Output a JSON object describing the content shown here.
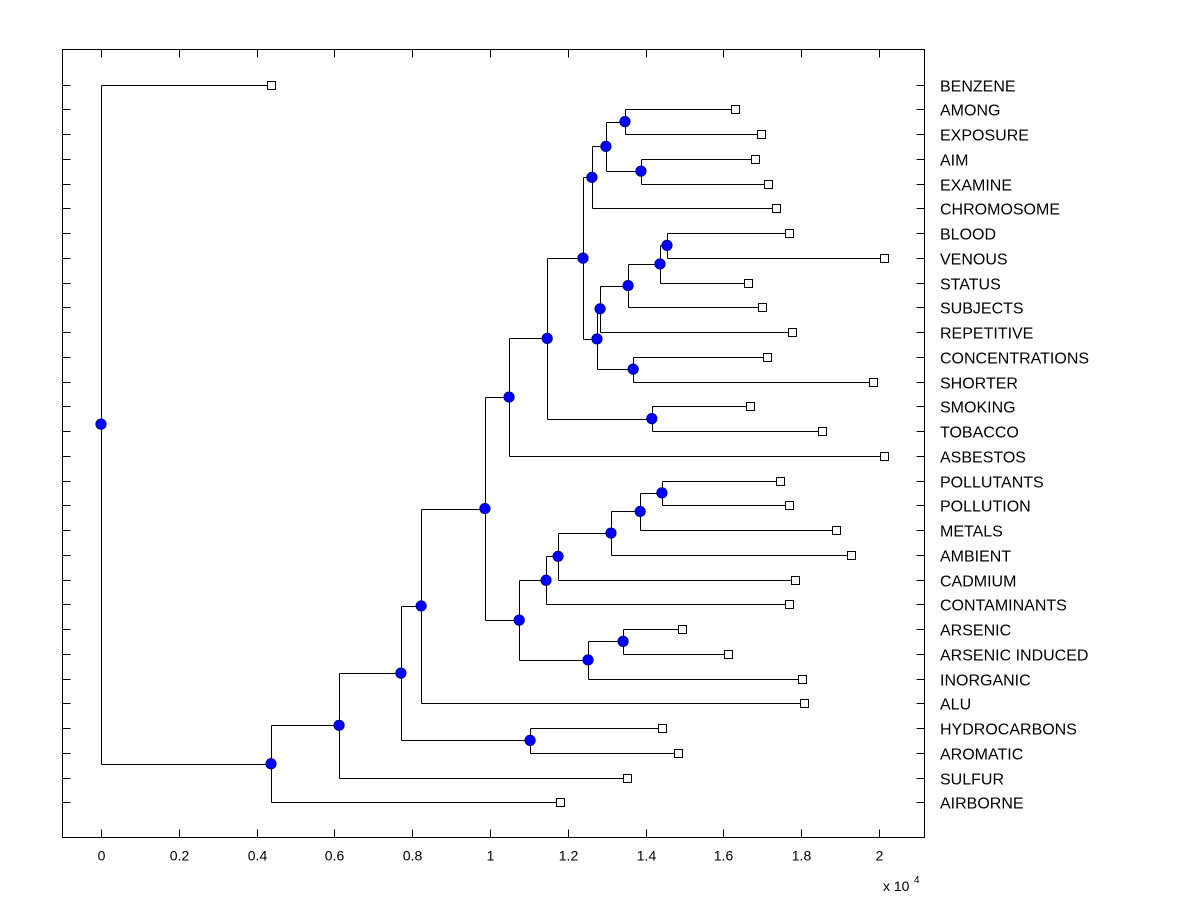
{
  "chart_data": {
    "type": "dendrogram",
    "title": "",
    "xlabel": "",
    "ylabel": "",
    "x_multiplier": "x 10",
    "x_multiplier_exponent": "4",
    "xlim": [
      -0.1,
      2.12
    ],
    "xticks": [
      0,
      0.2,
      0.4,
      0.6,
      0.8,
      1,
      1.2,
      1.4,
      1.6,
      1.8,
      2
    ],
    "xtick_labels": [
      "0",
      "0.2",
      "0.4",
      "0.6",
      "0.8",
      "1",
      "1.2",
      "1.4",
      "1.6",
      "1.8",
      "2"
    ],
    "grid": false,
    "leaf_label_side": "right",
    "node_marker_color": "#0000ff",
    "line_color": "#000000",
    "leaves": [
      {
        "label": "BENZENE",
        "value": 0.437
      },
      {
        "label": "AMONG",
        "value": 1.63
      },
      {
        "label": "EXPOSURE",
        "value": 1.697
      },
      {
        "label": "AIM",
        "value": 1.681
      },
      {
        "label": "EXAMINE",
        "value": 1.715
      },
      {
        "label": "CHROMOSOME",
        "value": 1.735
      },
      {
        "label": "BLOOD",
        "value": 1.769
      },
      {
        "label": "VENOUS",
        "value": 2.013
      },
      {
        "label": "STATUS",
        "value": 1.663
      },
      {
        "label": "SUBJECTS",
        "value": 1.699
      },
      {
        "label": "REPETITIVE",
        "value": 1.776
      },
      {
        "label": "CONCENTRATIONS",
        "value": 1.712
      },
      {
        "label": "SHORTER",
        "value": 1.985
      },
      {
        "label": "SMOKING",
        "value": 1.668
      },
      {
        "label": "TOBACCO",
        "value": 1.853
      },
      {
        "label": "ASBESTOS",
        "value": 2.013
      },
      {
        "label": "POLLUTANTS",
        "value": 1.746
      },
      {
        "label": "POLLUTION",
        "value": 1.769
      },
      {
        "label": "METALS",
        "value": 1.889
      },
      {
        "label": "AMBIENT",
        "value": 1.928
      },
      {
        "label": "CADMIUM",
        "value": 1.784
      },
      {
        "label": "CONTAMINANTS",
        "value": 1.769
      },
      {
        "label": "ARSENIC",
        "value": 1.494
      },
      {
        "label": "ARSENIC INDUCED",
        "value": 1.612
      },
      {
        "label": "INORGANIC",
        "value": 1.802
      },
      {
        "label": "ALU",
        "value": 1.807
      },
      {
        "label": "HYDROCARBONS",
        "value": 1.442
      },
      {
        "label": "AROMATIC",
        "value": 1.483
      },
      {
        "label": "SULFUR",
        "value": 1.352
      },
      {
        "label": "AIRBORNE",
        "value": 1.18
      }
    ],
    "tree": {
      "value": 0,
      "children": [
        {
          "leaf": "BENZENE"
        },
        {
          "value": 0.437,
          "children": [
            {
              "value": 0.612,
              "children": [
                {
                  "value": 0.771,
                  "children": [
                    {
                      "value": 0.823,
                      "children": [
                        {
                          "value": 0.987,
                          "children": [
                            {
                              "value": 1.049,
                              "children": [
                                {
                                  "value": 1.147,
                                  "children": [
                                    {
                                      "value": 1.239,
                                      "children": [
                                        {
                                          "value": 1.262,
                                          "children": [
                                            {
                                              "value": 1.298,
                                              "children": [
                                                {
                                                  "value": 1.347,
                                                  "children": [
                                                    {
                                                      "leaf": "AMONG"
                                                    },
                                                    {
                                                      "leaf": "EXPOSURE"
                                                    }
                                                  ]
                                                },
                                                {
                                                  "value": 1.388,
                                                  "children": [
                                                    {
                                                      "leaf": "AIM"
                                                    },
                                                    {
                                                      "leaf": "EXAMINE"
                                                    }
                                                  ]
                                                }
                                              ]
                                            },
                                            {
                                              "leaf": "CHROMOSOME"
                                            }
                                          ]
                                        },
                                        {
                                          "value": 1.275,
                                          "children": [
                                            {
                                              "value": 1.283,
                                              "children": [
                                                {
                                                  "value": 1.355,
                                                  "children": [
                                                    {
                                                      "value": 1.437,
                                                      "children": [
                                                        {
                                                          "value": 1.455,
                                                          "children": [
                                                            {
                                                              "leaf": "BLOOD"
                                                            },
                                                            {
                                                              "leaf": "VENOUS"
                                                            }
                                                          ]
                                                        },
                                                        {
                                                          "leaf": "STATUS"
                                                        }
                                                      ]
                                                    },
                                                    {
                                                      "leaf": "SUBJECTS"
                                                    }
                                                  ]
                                                },
                                                {
                                                  "leaf": "REPETITIVE"
                                                }
                                              ]
                                            },
                                            {
                                              "value": 1.368,
                                              "children": [
                                                {
                                                  "leaf": "CONCENTRATIONS"
                                                },
                                                {
                                                  "leaf": "SHORTER"
                                                }
                                              ]
                                            }
                                          ]
                                        }
                                      ]
                                    },
                                    {
                                      "value": 1.416,
                                      "children": [
                                        {
                                          "leaf": "SMOKING"
                                        },
                                        {
                                          "leaf": "TOBACCO"
                                        }
                                      ]
                                    }
                                  ]
                                },
                                {
                                  "leaf": "ASBESTOS"
                                }
                              ]
                            },
                            {
                              "value": 1.075,
                              "children": [
                                {
                                  "value": 1.144,
                                  "children": [
                                    {
                                      "value": 1.175,
                                      "children": [
                                        {
                                          "value": 1.311,
                                          "children": [
                                            {
                                              "value": 1.386,
                                              "children": [
                                                {
                                                  "value": 1.442,
                                                  "children": [
                                                    {
                                                      "leaf": "POLLUTANTS"
                                                    },
                                                    {
                                                      "leaf": "POLLUTION"
                                                    }
                                                  ]
                                                },
                                                {
                                                  "leaf": "METALS"
                                                }
                                              ]
                                            },
                                            {
                                              "leaf": "AMBIENT"
                                            }
                                          ]
                                        },
                                        {
                                          "leaf": "CADMIUM"
                                        }
                                      ]
                                    },
                                    {
                                      "leaf": "CONTAMINANTS"
                                    }
                                  ]
                                },
                                {
                                  "value": 1.252,
                                  "children": [
                                    {
                                      "value": 1.342,
                                      "children": [
                                        {
                                          "leaf": "ARSENIC"
                                        },
                                        {
                                          "leaf": "ARSENIC INDUCED"
                                        }
                                      ]
                                    },
                                    {
                                      "leaf": "INORGANIC"
                                    }
                                  ]
                                }
                              ]
                            }
                          ]
                        },
                        {
                          "leaf": "ALU"
                        }
                      ]
                    },
                    {
                      "value": 1.103,
                      "children": [
                        {
                          "leaf": "HYDROCARBONS"
                        },
                        {
                          "leaf": "AROMATIC"
                        }
                      ]
                    }
                  ]
                },
                {
                  "leaf": "SULFUR"
                }
              ]
            },
            {
              "leaf": "AIRBORNE"
            }
          ]
        }
      ]
    }
  }
}
